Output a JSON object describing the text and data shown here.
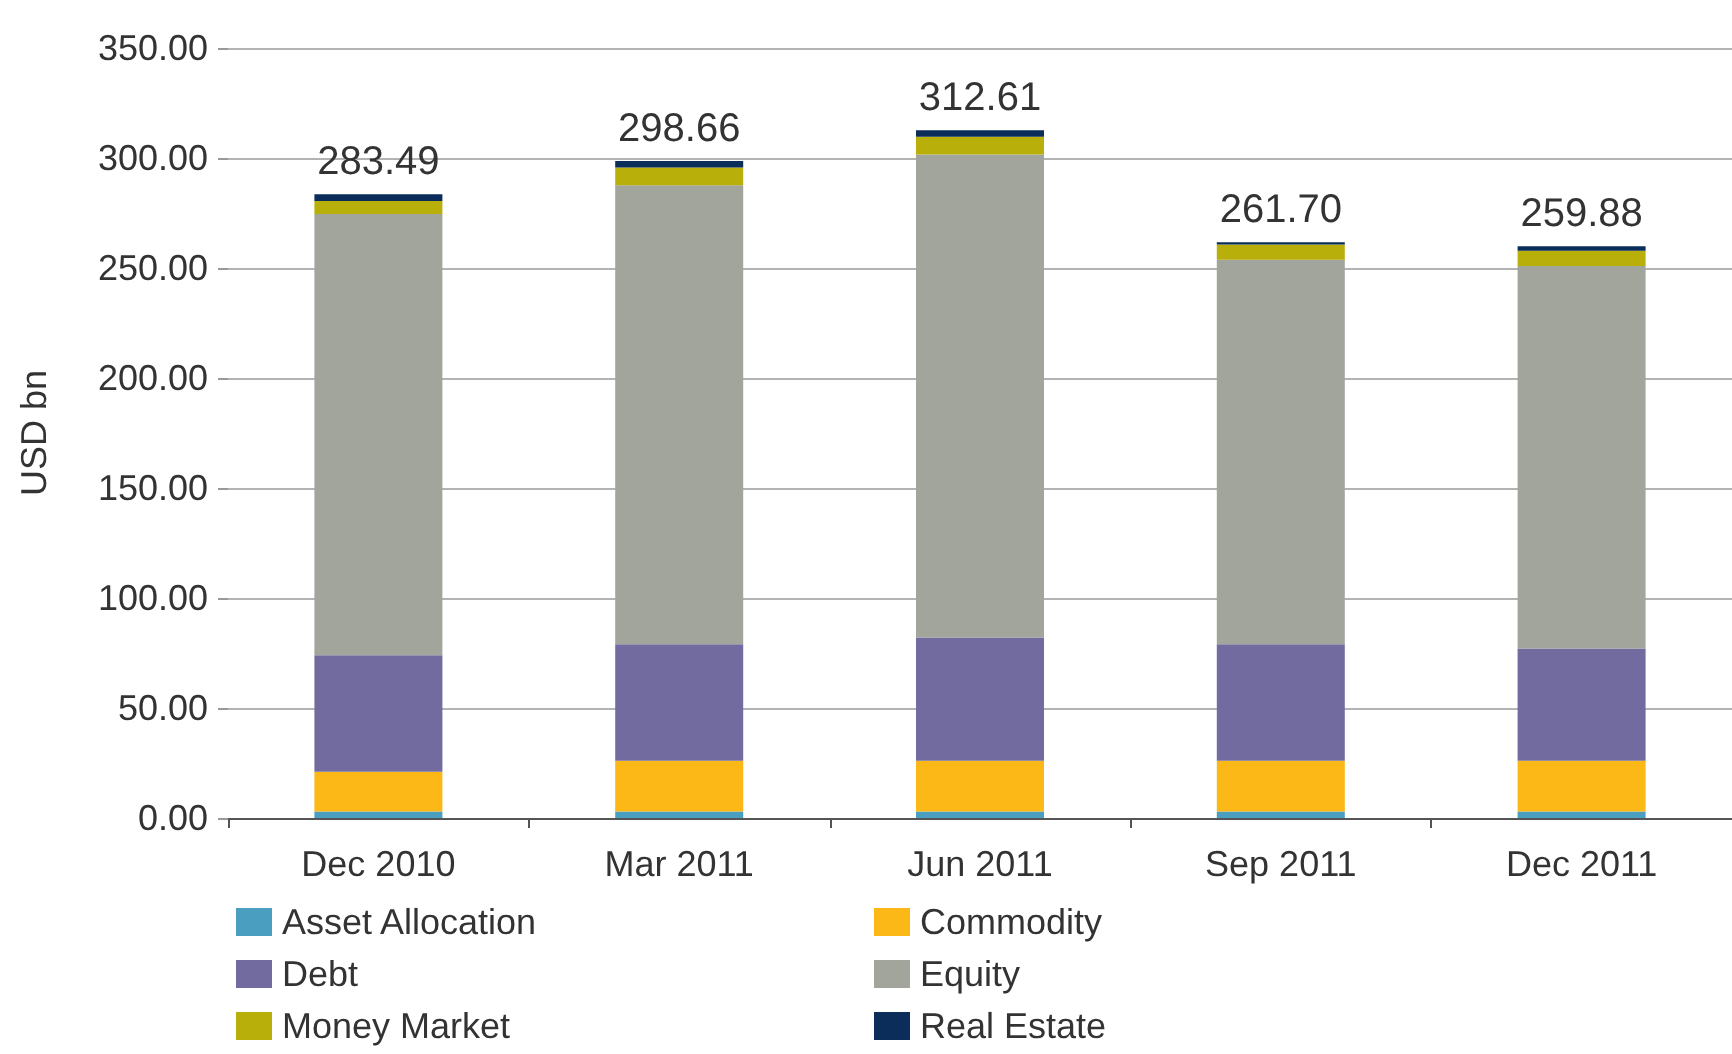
{
  "chart_data": {
    "type": "bar",
    "stacked": true,
    "ylabel": "USD bn",
    "categories": [
      "Dec 2010",
      "Mar 2011",
      "Jun 2011",
      "Sep 2011",
      "Dec 2011"
    ],
    "series": [
      {
        "name": "Asset Allocation",
        "color": "#4a9fc0",
        "values": [
          3,
          3,
          3,
          3,
          3
        ]
      },
      {
        "name": "Commodity",
        "color": "#fbb817",
        "values": [
          18,
          23,
          23,
          23,
          23
        ]
      },
      {
        "name": "Debt",
        "color": "#726b9f",
        "values": [
          53,
          53,
          56,
          53,
          51
        ]
      },
      {
        "name": "Equity",
        "color": "#a1a59c",
        "values": [
          200.49,
          208.66,
          219.61,
          174.7,
          173.88
        ]
      },
      {
        "name": "Money Market",
        "color": "#b8af0a",
        "values": [
          6,
          8,
          8,
          7,
          7
        ]
      },
      {
        "name": "Real Estate",
        "color": "#0a2d5a",
        "values": [
          3,
          3,
          3,
          1,
          2
        ]
      }
    ],
    "totals": [
      "283.49",
      "298.66",
      "312.61",
      "261.70",
      "259.88"
    ],
    "ylim": [
      0,
      350
    ],
    "yticks": [
      {
        "value": 0,
        "label": "0.00"
      },
      {
        "value": 50,
        "label": "50.00"
      },
      {
        "value": 100,
        "label": "100.00"
      },
      {
        "value": 150,
        "label": "150.00"
      },
      {
        "value": 200,
        "label": "200.00"
      },
      {
        "value": 250,
        "label": "250.00"
      },
      {
        "value": 300,
        "label": "300.00"
      },
      {
        "value": 350,
        "label": "350.00"
      }
    ],
    "grid": "y",
    "legend": "bottom"
  }
}
